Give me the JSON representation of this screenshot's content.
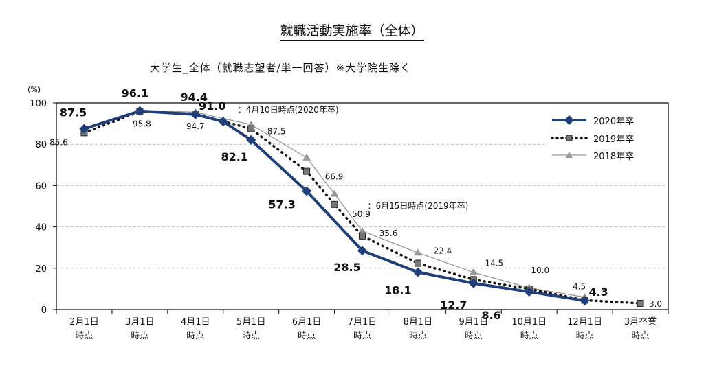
{
  "chart_data": {
    "type": "line",
    "title": "就職活動実施率（全体）",
    "subtitle": "大学生_全体（就職志望者/単一回答）※大学院生除く",
    "ylabel": "(%)",
    "ylim": [
      0,
      100
    ],
    "yticks": [
      "0",
      "20",
      "40",
      "60",
      "80",
      "100"
    ],
    "grid": true,
    "legend_position": "top-right",
    "categories": [
      [
        "2月1日",
        "時点"
      ],
      [
        "3月1日",
        "時点"
      ],
      [
        "4月1日",
        "時点"
      ],
      [
        "5月1日",
        "時点"
      ],
      [
        "6月1日",
        "時点"
      ],
      [
        "7月1日",
        "時点"
      ],
      [
        "8月1日",
        "時点"
      ],
      [
        "9月1日",
        "時点"
      ],
      [
        "10月1日",
        "時点"
      ],
      [
        "12月1日",
        "時点"
      ],
      [
        "3月卒業",
        "時点"
      ]
    ],
    "series": [
      {
        "name": "2020年卒",
        "color": "#1f3f7a",
        "x": [
          0,
          1,
          2,
          2.5,
          3,
          4,
          5,
          6,
          7,
          8,
          9
        ],
        "values": [
          87.5,
          96.1,
          94.4,
          91.0,
          82.1,
          57.3,
          28.5,
          18.1,
          12.7,
          8.6,
          4.3
        ]
      },
      {
        "name": "2019年卒",
        "color": "#111111",
        "x": [
          0,
          1,
          2,
          3,
          4,
          4.5,
          5,
          6,
          7,
          8,
          9,
          10
        ],
        "values": [
          85.6,
          95.8,
          94.7,
          87.5,
          66.9,
          50.9,
          35.6,
          22.4,
          14.5,
          10.0,
          4.5,
          3.0
        ]
      },
      {
        "name": "2018年卒",
        "color": "#999999",
        "x": [
          1,
          2,
          3,
          4,
          4.5,
          5,
          6,
          7,
          8,
          9
        ],
        "values": [
          96.5,
          95.5,
          89.5,
          73.5,
          56,
          38,
          27.5,
          18,
          10.5,
          6
        ]
      }
    ],
    "annotations": [
      "：4月10日時点(2020年卒)",
      "：6月15日時点(2019年卒)"
    ]
  }
}
